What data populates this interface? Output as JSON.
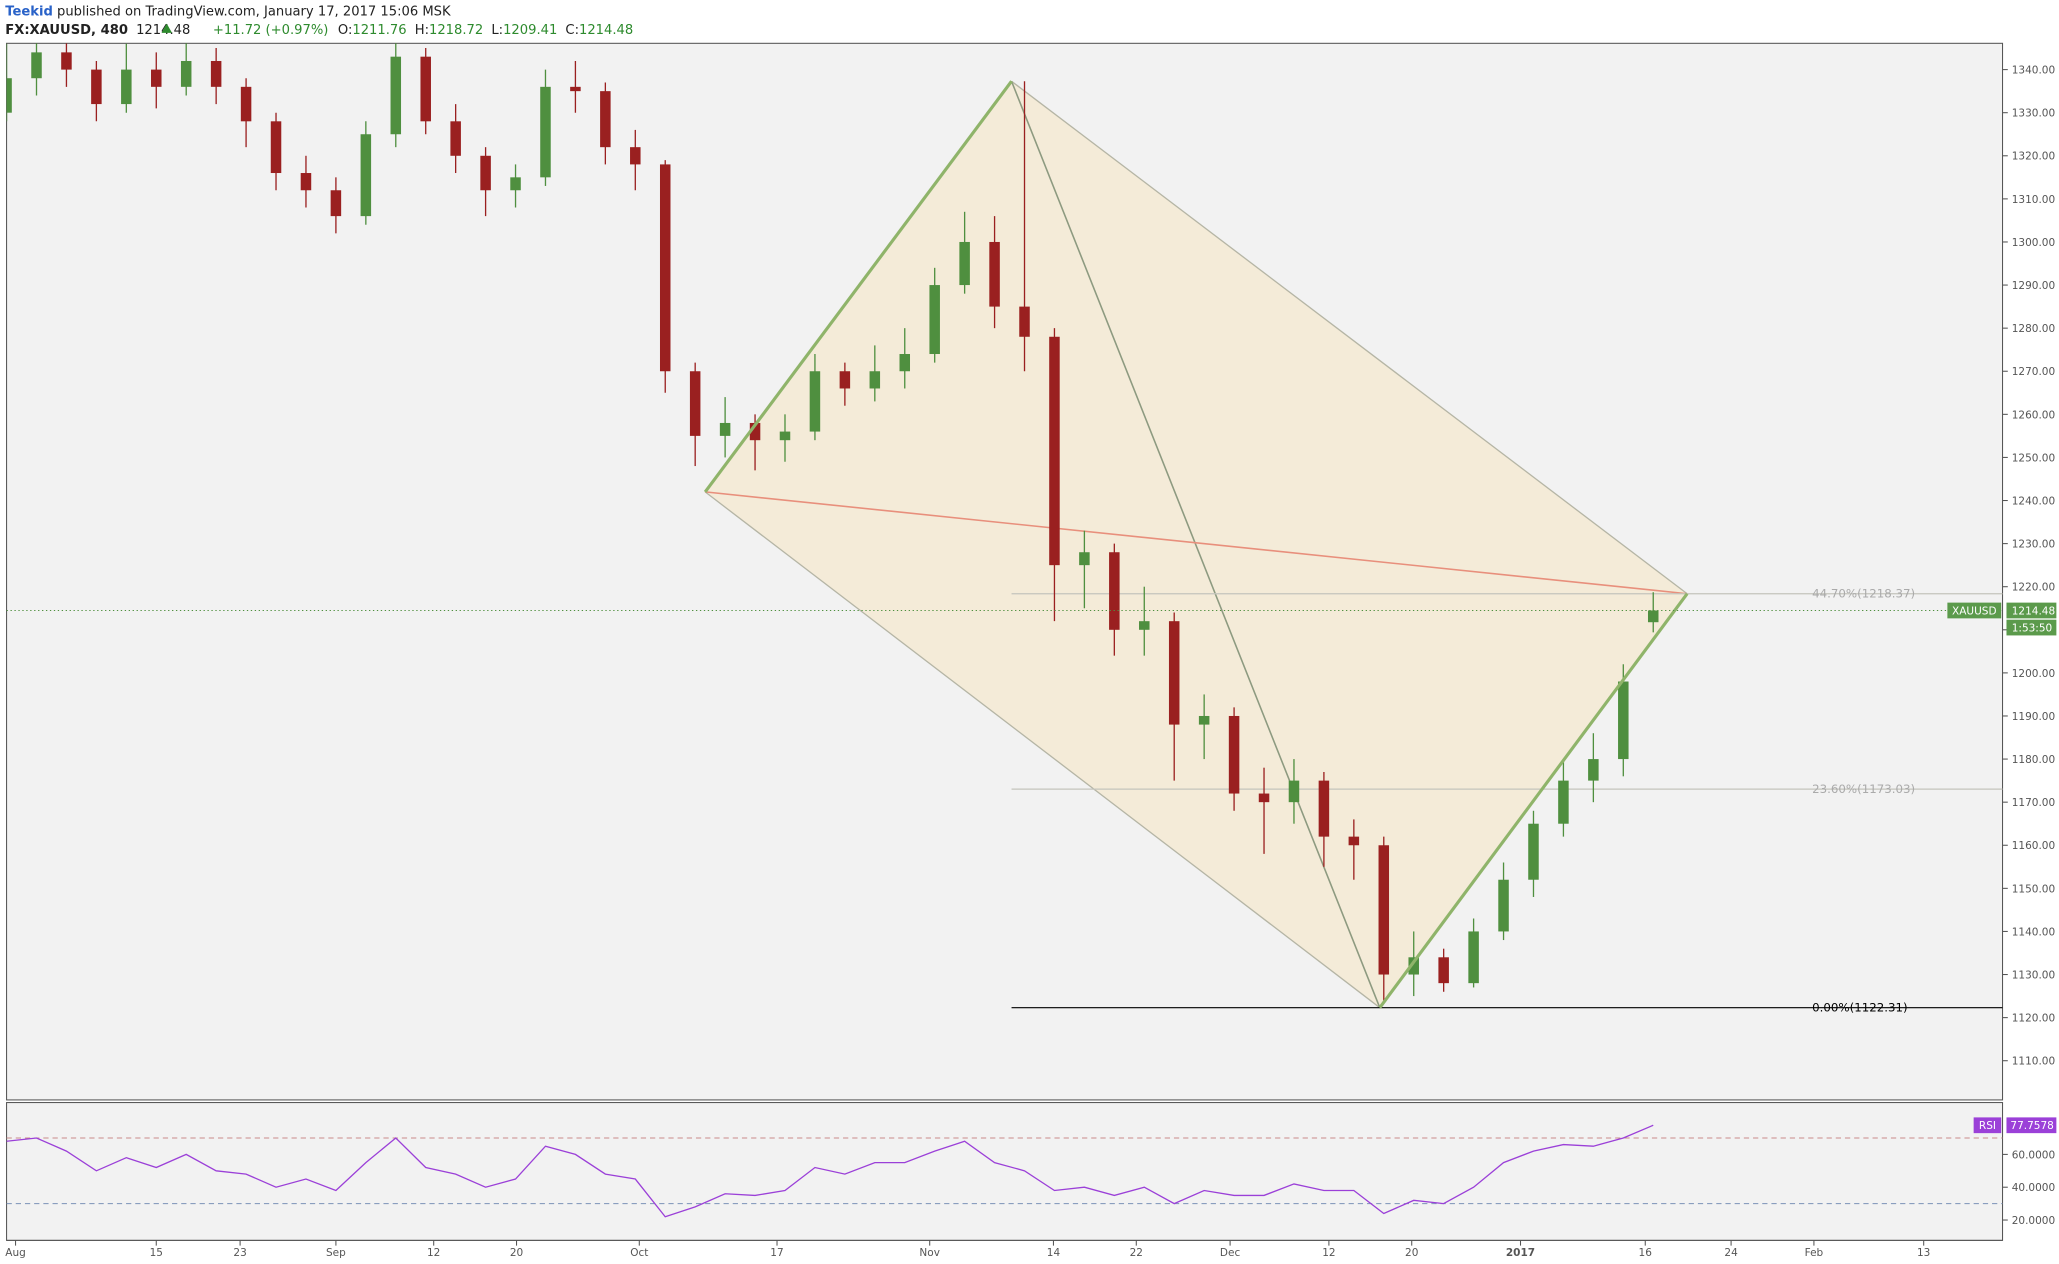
{
  "header": {
    "author": "Teekid",
    "published": "published on TradingView.com, January 17, 2017 15:06 MSK",
    "symbol": "FX:XAUUSD, 480",
    "change": "+11.72 (+0.97%)",
    "ohlc_labels": [
      "O:",
      "H:",
      "L:",
      "C:"
    ]
  },
  "chart_data": [
    {
      "type": "candlestick",
      "up_color": "#4f8f3f",
      "down_color": "#9a2020",
      "x": [
        0,
        3,
        6,
        9,
        12,
        15,
        18,
        21,
        24,
        27,
        30,
        33,
        36,
        39,
        42,
        45,
        48,
        51,
        54,
        57,
        60,
        63,
        66,
        69,
        72,
        75,
        78,
        81,
        84,
        87,
        90,
        93,
        96,
        99,
        102,
        105,
        108,
        111,
        114,
        117,
        120,
        123,
        126,
        129,
        132,
        135,
        138,
        141,
        144,
        147,
        150,
        153,
        156,
        159,
        162,
        165
      ],
      "open": [
        1330,
        1338,
        1344,
        1340,
        1332,
        1340,
        1336,
        1342,
        1336,
        1328,
        1316,
        1312,
        1306,
        1325,
        1343,
        1328,
        1320,
        1312,
        1315,
        1336,
        1335,
        1322,
        1318,
        1270,
        1255,
        1258,
        1254,
        1256,
        1270,
        1266,
        1270,
        1274,
        1290,
        1300,
        1285,
        1278,
        1225,
        1228,
        1210,
        1212,
        1188,
        1190,
        1172,
        1170,
        1175,
        1162,
        1160,
        1130,
        1134,
        1128,
        1140,
        1152,
        1165,
        1175,
        1180,
        1211.76
      ],
      "high": [
        1346,
        1350,
        1348,
        1342,
        1346,
        1344,
        1348,
        1345,
        1338,
        1330,
        1320,
        1315,
        1328,
        1348,
        1345,
        1332,
        1322,
        1318,
        1340,
        1342,
        1337,
        1326,
        1319,
        1272,
        1264,
        1260,
        1260,
        1274,
        1272,
        1276,
        1280,
        1294,
        1307,
        1306,
        1337.3,
        1280,
        1233,
        1230,
        1220,
        1214,
        1195,
        1192,
        1178,
        1180,
        1177,
        1166,
        1162,
        1140,
        1136,
        1143,
        1156,
        1168,
        1180,
        1186,
        1202,
        1218.72
      ],
      "low": [
        1328,
        1334,
        1336,
        1328,
        1330,
        1331,
        1334,
        1332,
        1322,
        1312,
        1308,
        1302,
        1304,
        1322,
        1325,
        1316,
        1306,
        1308,
        1313,
        1330,
        1318,
        1312,
        1265,
        1248,
        1250,
        1247,
        1249,
        1254,
        1262,
        1263,
        1266,
        1272,
        1288,
        1280,
        1270,
        1212,
        1215,
        1204,
        1204,
        1175,
        1180,
        1168,
        1158,
        1165,
        1155,
        1152,
        1124,
        1125,
        1126,
        1127,
        1138,
        1148,
        1162,
        1170,
        1176,
        1209.41
      ],
      "close": [
        1338,
        1344,
        1340,
        1332,
        1340,
        1336,
        1342,
        1336,
        1328,
        1316,
        1312,
        1306,
        1325,
        1343,
        1328,
        1320,
        1312,
        1315,
        1336,
        1335,
        1322,
        1318,
        1270,
        1255,
        1258,
        1254,
        1256,
        1270,
        1266,
        1270,
        1274,
        1290,
        1300,
        1285,
        1278,
        1225,
        1228,
        1210,
        1212,
        1188,
        1190,
        1172,
        1170,
        1175,
        1162,
        1160,
        1130,
        1134,
        1128,
        1140,
        1152,
        1165,
        1175,
        1180,
        1198,
        1214.48
      ],
      "xlim": [
        0,
        200
      ],
      "xticks": [
        {
          "value": 0.9,
          "label": "Aug"
        },
        {
          "value": 15.0,
          "label": "15"
        },
        {
          "value": 23.4,
          "label": "23"
        },
        {
          "value": 33.0,
          "label": "Sep"
        },
        {
          "value": 42.8,
          "label": "12"
        },
        {
          "value": 51.1,
          "label": "20"
        },
        {
          "value": 63.4,
          "label": "Oct"
        },
        {
          "value": 77.2,
          "label": "17"
        },
        {
          "value": 92.5,
          "label": "Nov"
        },
        {
          "value": 104.9,
          "label": "14"
        },
        {
          "value": 113.2,
          "label": "22"
        },
        {
          "value": 122.6,
          "label": "Dec"
        },
        {
          "value": 132.5,
          "label": "12"
        },
        {
          "value": 140.8,
          "label": "20"
        },
        {
          "value": 151.7,
          "label": "2017"
        },
        {
          "value": 164.2,
          "label": "16"
        },
        {
          "value": 172.8,
          "label": "24"
        },
        {
          "value": 181.1,
          "label": "Feb"
        },
        {
          "value": 192.1,
          "label": "13"
        }
      ],
      "ylim": [
        1100.9,
        1346.1
      ],
      "yticks": [
        {
          "value": 1110,
          "label": "1110.00"
        },
        {
          "value": 1120,
          "label": "1120.00"
        },
        {
          "value": 1130,
          "label": "1130.00"
        },
        {
          "value": 1140,
          "label": "1140.00"
        },
        {
          "value": 1150,
          "label": "1150.00"
        },
        {
          "value": 1160,
          "label": "1160.00"
        },
        {
          "value": 1170,
          "label": "1170.00"
        },
        {
          "value": 1180,
          "label": "1180.00"
        },
        {
          "value": 1190,
          "label": "1190.00"
        },
        {
          "value": 1200,
          "label": "1200.00"
        },
        {
          "value": 1210,
          "label": "1210.00"
        },
        {
          "value": 1220,
          "label": "1220.00"
        },
        {
          "value": 1230,
          "label": "1230.00"
        },
        {
          "value": 1240,
          "label": "1240.00"
        },
        {
          "value": 1250,
          "label": "1250.00"
        },
        {
          "value": 1260,
          "label": "1260.00"
        },
        {
          "value": 1270,
          "label": "1270.00"
        },
        {
          "value": 1280,
          "label": "1280.00"
        },
        {
          "value": 1290,
          "label": "1290.00"
        },
        {
          "value": 1300,
          "label": "1300.00"
        },
        {
          "value": 1310,
          "label": "1310.00"
        },
        {
          "value": 1320,
          "label": "1320.00"
        },
        {
          "value": 1330,
          "label": "1330.00"
        },
        {
          "value": 1340,
          "label": "1340.00"
        }
      ],
      "symbol_label": "XAUUSD",
      "countdown": "1:53:50",
      "drawing": {
        "x": [
          70.0,
          100.7,
          137.6,
          168.4
        ],
        "y": [
          1242,
          1337.3,
          1122.31,
          1218.37
        ]
      },
      "fib": [
        {
          "value": 1218.37,
          "label": "44.70%(1218.37)",
          "color": "#c4c4bc"
        },
        {
          "value": 1173.03,
          "label": "23.60%(1173.03)",
          "color": "#c4c4bc"
        },
        {
          "value": 1122.31,
          "label": "0.00%(1122.31)",
          "color": "#000000"
        }
      ]
    },
    {
      "type": "line",
      "name": "RSI",
      "color": "#9b40d8",
      "x": [
        0,
        3,
        6,
        9,
        12,
        15,
        18,
        21,
        24,
        27,
        30,
        33,
        36,
        39,
        42,
        45,
        48,
        51,
        54,
        57,
        60,
        63,
        66,
        69,
        72,
        75,
        78,
        81,
        84,
        87,
        90,
        93,
        96,
        99,
        102,
        105,
        108,
        111,
        114,
        117,
        120,
        123,
        126,
        129,
        132,
        135,
        138,
        141,
        144,
        147,
        150,
        153,
        156,
        159,
        162,
        165
      ],
      "values": [
        68,
        70,
        62,
        50,
        58,
        52,
        60,
        50,
        48,
        40,
        45,
        38,
        55,
        70,
        52,
        48,
        40,
        45,
        65,
        60,
        48,
        45,
        22,
        28,
        36,
        35,
        38,
        52,
        48,
        55,
        55,
        62,
        68,
        55,
        50,
        38,
        40,
        35,
        40,
        30,
        38,
        35,
        35,
        42,
        38,
        38,
        24,
        32,
        30,
        40,
        55,
        62,
        66,
        65,
        70,
        77.7578
      ],
      "ylim": [
        7.6,
        91.6
      ],
      "yticks": [
        {
          "value": 20,
          "label": "20.0000"
        },
        {
          "value": 40,
          "label": "40.0000"
        },
        {
          "value": 60,
          "label": "60.0000"
        }
      ],
      "bands": [
        70,
        30
      ]
    }
  ]
}
